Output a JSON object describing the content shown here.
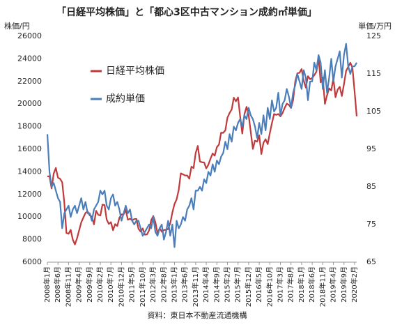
{
  "chart_data": {
    "type": "line",
    "title": "「日経平均株価」と「都心3区中古マンション成約㎡単価」",
    "y_label": "株価/円",
    "y2_label": "単価/万円",
    "source": "資料：東日本不動産流通機構",
    "categories": [
      "2008年1月",
      null,
      null,
      null,
      null,
      "2008年6月",
      null,
      null,
      null,
      null,
      "2008年11月",
      null,
      null,
      null,
      null,
      "2009年4月",
      null,
      null,
      null,
      null,
      "2009年9月",
      null,
      null,
      null,
      null,
      "2010年2月",
      null,
      null,
      null,
      null,
      "2010年7月",
      null,
      null,
      null,
      null,
      "2010年12月",
      null,
      null,
      null,
      null,
      "2011年5月",
      null,
      null,
      null,
      null,
      "2011年10月",
      null,
      null,
      null,
      null,
      "2012年3月",
      null,
      null,
      null,
      null,
      "2012年8月",
      null,
      null,
      null,
      null,
      "2013年1月",
      null,
      null,
      null,
      null,
      "2013年6月",
      null,
      null,
      null,
      null,
      "2013年11月",
      null,
      null,
      null,
      null,
      "2014年4月",
      null,
      null,
      null,
      null,
      "2014年9月",
      null,
      null,
      null,
      null,
      "2015年2月",
      null,
      null,
      null,
      null,
      "2015年7月",
      null,
      null,
      null,
      null,
      "2015年12月",
      null,
      null,
      null,
      null,
      "2016年5月",
      null,
      null,
      null,
      null,
      "2016年10月",
      null,
      null,
      null,
      null,
      "2017年3月",
      null,
      null,
      null,
      null,
      "2017年8月",
      null,
      null,
      null,
      null,
      "2018年1月",
      null,
      null,
      null,
      null,
      "2018年6月",
      null,
      null,
      null,
      null,
      "2018年11月",
      null,
      null,
      null,
      null,
      "2019年4月",
      null,
      null,
      null,
      null,
      "2019年9月",
      null,
      null,
      null,
      null,
      "2020年2月",
      null
    ],
    "ylim": [
      6000,
      26000
    ],
    "yticks": [
      6000,
      8000,
      10000,
      12000,
      14000,
      16000,
      18000,
      20000,
      22000,
      24000,
      26000
    ],
    "y2lim": [
      65,
      125
    ],
    "y2ticks": [
      65,
      75,
      85,
      95,
      105,
      115,
      125
    ],
    "grid": false,
    "legend": "upper left",
    "series": [
      {
        "name": "日経平均株価",
        "color": "#c0393b",
        "values": [
          13592,
          13603,
          12526,
          13850,
          14338,
          13481,
          13376,
          13072,
          11260,
          8577,
          8512,
          8860,
          7994,
          7568,
          8110,
          8828,
          9523,
          9958,
          10357,
          10493,
          10133,
          10035,
          9346,
          10546,
          10198,
          10126,
          11090,
          11057,
          9769,
          9383,
          9537,
          8824,
          9369,
          9202,
          9937,
          10229,
          10238,
          10624,
          9755,
          9850,
          9694,
          9816,
          9833,
          8955,
          8700,
          8988,
          8434,
          8455,
          8803,
          9723,
          10084,
          9521,
          8543,
          9007,
          8695,
          8840,
          8870,
          8928,
          9446,
          10395,
          11139,
          11559,
          12398,
          13861,
          13775,
          13677,
          13668,
          13389,
          14456,
          14328,
          15662,
          16291,
          14915,
          14841,
          14828,
          14304,
          14632,
          15162,
          15621,
          15425,
          16174,
          16414,
          17460,
          17451,
          17674,
          18798,
          19207,
          19520,
          20563,
          20236,
          20585,
          18890,
          17388,
          19083,
          19747,
          19034,
          17518,
          16027,
          16759,
          16666,
          17235,
          15576,
          16569,
          16887,
          16450,
          17425,
          18308,
          19114,
          19041,
          19119,
          18909,
          19197,
          19651,
          20033,
          19925,
          19646,
          20356,
          22012,
          22725,
          22765,
          23098,
          22068,
          21454,
          22468,
          22202,
          22305,
          22554,
          22865,
          24120,
          21920,
          22351,
          20015,
          20773,
          21385,
          21206,
          22259,
          20601,
          21276,
          21522,
          20704,
          21756,
          22927,
          23294,
          23657,
          23205,
          21143,
          18917
        ]
      },
      {
        "name": "成約単価",
        "color": "#4a7ebb",
        "axis": "y2",
        "values": [
          99,
          89,
          85,
          86,
          84,
          82,
          81,
          74,
          78,
          79,
          80,
          77,
          79,
          80,
          78,
          80,
          82,
          79,
          81,
          78,
          78,
          76,
          79,
          80,
          81,
          84,
          83,
          84,
          80,
          79,
          82,
          83,
          80,
          81,
          79,
          76,
          78,
          80,
          78,
          79,
          76,
          75,
          76,
          76,
          74,
          72,
          73,
          74,
          75,
          74,
          77,
          73,
          72,
          74,
          75,
          71,
          73,
          76,
          72,
          75,
          69,
          76,
          74,
          75,
          77,
          76,
          79,
          80,
          82,
          79,
          84,
          84,
          85,
          84,
          87,
          86,
          89,
          88,
          91,
          89,
          92,
          91,
          93,
          94,
          97,
          95,
          99,
          97,
          101,
          100,
          102,
          103,
          101,
          104,
          103,
          106,
          104,
          103,
          101,
          98,
          102,
          99,
          104,
          100,
          106,
          103,
          108,
          105,
          106,
          110,
          104,
          107,
          108,
          111,
          109,
          106,
          110,
          112,
          115,
          113,
          111,
          116,
          114,
          108,
          113,
          113,
          118,
          116,
          120,
          118,
          111,
          116,
          110,
          114,
          119,
          113,
          117,
          119,
          121,
          114,
          120,
          123,
          117,
          115,
          117,
          117,
          118
        ]
      }
    ]
  }
}
